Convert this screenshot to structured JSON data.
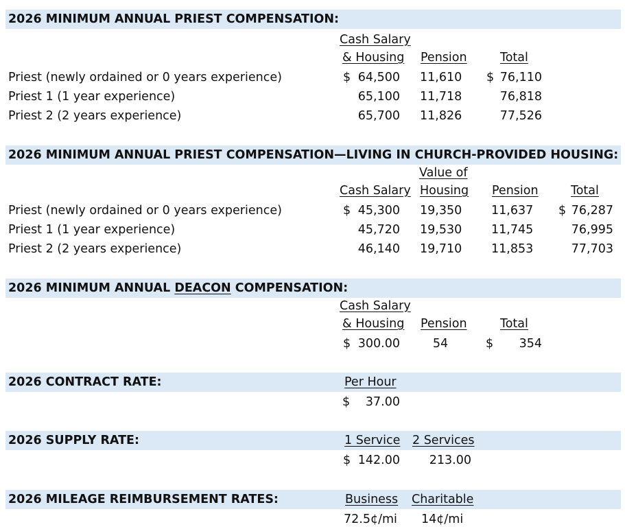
{
  "sections": [
    {
      "title": "2026 MINIMUM ANNUAL PRIEST COMPENSATION:",
      "headers": {
        "cash_salary": "Cash Salary",
        "housing": "& Housing",
        "pension": "Pension",
        "total": "Total"
      },
      "rows": [
        {
          "label": "Priest (newly ordained or 0 years experience)",
          "cash": "64,500",
          "pension": "11,610",
          "total": "76,110",
          "dollar": "$"
        },
        {
          "label": "Priest 1 (1 year experience)",
          "cash": "65,100",
          "pension": "11,718",
          "total": "76,818"
        },
        {
          "label": "Priest 2 (2 years experience)",
          "cash": "65,700",
          "pension": "11,826",
          "total": "77,526"
        }
      ]
    },
    {
      "title": "2026 MINIMUM ANNUAL PRIEST COMPENSATION—LIVING IN CHURCH-PROVIDED HOUSING:",
      "headers": {
        "cash_salary": "Cash Salary",
        "value_of": "Value of",
        "housing": "Housing",
        "pension": "Pension",
        "total": "Total"
      },
      "rows": [
        {
          "label": "Priest (newly ordained or 0 years experience)",
          "cash": "45,300",
          "housing": "19,350",
          "pension": "11,637",
          "total": "76,287",
          "dollar": "$"
        },
        {
          "label": "Priest 1 (1 year experience)",
          "cash": "45,720",
          "housing": "19,530",
          "pension": "11,745",
          "total": "76,995"
        },
        {
          "label": "Priest 2 (2 years experience)",
          "cash": "46,140",
          "housing": "19,710",
          "pension": "11,853",
          "total": "77,703"
        }
      ]
    },
    {
      "title_pre": "2026 MINIMUM ANNUAL ",
      "title_underlined": "DEACON",
      "title_post": " COMPENSATION:",
      "headers": {
        "cash_salary": "Cash Salary",
        "housing": "& Housing",
        "pension": "Pension",
        "total": "Total"
      },
      "row": {
        "dollar": "$",
        "cash": "300.00",
        "pension": "54",
        "total_dollar": "$",
        "total": "354"
      }
    },
    {
      "title": "2026 CONTRACT RATE:",
      "header": "Per Hour",
      "row": {
        "dollar": "$",
        "value": "37.00"
      }
    },
    {
      "title": "2026 SUPPLY RATE:",
      "headers": {
        "one": "1 Service",
        "two": "2 Services"
      },
      "row": {
        "dollar": "$",
        "one": "142.00",
        "two": "213.00"
      }
    },
    {
      "title": "2026 MILEAGE REIMBURSEMENT RATES:",
      "headers": {
        "business": "Business",
        "charitable": "Charitable"
      },
      "row": {
        "business": "72.5¢/mi",
        "charitable": "14¢/mi"
      }
    }
  ]
}
